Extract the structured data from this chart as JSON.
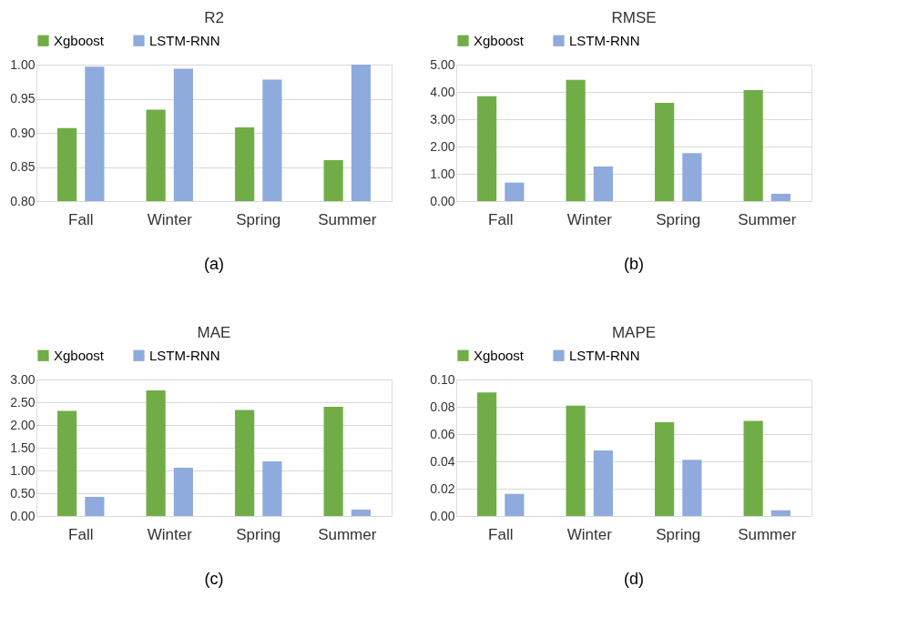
{
  "chart_data": [
    {
      "type": "bar",
      "title": "R2",
      "categories": [
        "Fall",
        "Winter",
        "Spring",
        "Summer"
      ],
      "series": [
        {
          "name": "Xgboost",
          "color": "#70ad47",
          "values": [
            0.907,
            0.934,
            0.908,
            0.86
          ]
        },
        {
          "name": "LSTM-RNN",
          "color": "#8faadc",
          "values": [
            0.997,
            0.994,
            0.978,
            1.0
          ]
        }
      ],
      "ylim": [
        0.8,
        1.0
      ],
      "yticks": [
        {
          "value": 0.8,
          "label": "0.80"
        },
        {
          "value": 0.85,
          "label": "0.85"
        },
        {
          "value": 0.9,
          "label": "0.90"
        },
        {
          "value": 0.95,
          "label": "0.95"
        },
        {
          "value": 1.0,
          "label": "1.00"
        }
      ],
      "grid": "y",
      "legend": "top",
      "annotations": [
        "(a)"
      ]
    },
    {
      "type": "bar",
      "title": "RMSE",
      "categories": [
        "Fall",
        "Winter",
        "Spring",
        "Summer"
      ],
      "series": [
        {
          "name": "Xgboost",
          "color": "#70ad47",
          "values": [
            3.84,
            4.44,
            3.6,
            4.07
          ]
        },
        {
          "name": "LSTM-RNN",
          "color": "#8faadc",
          "values": [
            0.68,
            1.27,
            1.76,
            0.27
          ]
        }
      ],
      "ylim": [
        0,
        5
      ],
      "yticks": [
        {
          "value": 0,
          "label": "0.00"
        },
        {
          "value": 1,
          "label": "1.00"
        },
        {
          "value": 2,
          "label": "2.00"
        },
        {
          "value": 3,
          "label": "3.00"
        },
        {
          "value": 4,
          "label": "4.00"
        },
        {
          "value": 5,
          "label": "5.00"
        }
      ],
      "grid": "y",
      "legend": "top",
      "annotations": [
        "(b)"
      ]
    },
    {
      "type": "bar",
      "title": "MAE",
      "categories": [
        "Fall",
        "Winter",
        "Spring",
        "Summer"
      ],
      "series": [
        {
          "name": "Xgboost",
          "color": "#70ad47",
          "values": [
            2.31,
            2.76,
            2.33,
            2.4
          ]
        },
        {
          "name": "LSTM-RNN",
          "color": "#8faadc",
          "values": [
            0.42,
            1.06,
            1.2,
            0.14
          ]
        }
      ],
      "ylim": [
        0,
        3
      ],
      "yticks": [
        {
          "value": 0,
          "label": "0.00"
        },
        {
          "value": 0.5,
          "label": "0.50"
        },
        {
          "value": 1,
          "label": "1.00"
        },
        {
          "value": 1.5,
          "label": "1.50"
        },
        {
          "value": 2,
          "label": "2.00"
        },
        {
          "value": 2.5,
          "label": "2.50"
        },
        {
          "value": 3,
          "label": "3.00"
        }
      ],
      "grid": "y",
      "legend": "top",
      "annotations": [
        "(c)"
      ]
    },
    {
      "type": "bar",
      "title": "MAPE",
      "categories": [
        "Fall",
        "Winter",
        "Spring",
        "Summer"
      ],
      "series": [
        {
          "name": "Xgboost",
          "color": "#70ad47",
          "values": [
            0.0905,
            0.0809,
            0.0687,
            0.0696
          ]
        },
        {
          "name": "LSTM-RNN",
          "color": "#8faadc",
          "values": [
            0.0162,
            0.048,
            0.0412,
            0.0042
          ]
        }
      ],
      "ylim": [
        0,
        0.1
      ],
      "yticks": [
        {
          "value": 0,
          "label": "0.00"
        },
        {
          "value": 0.02,
          "label": "0.02"
        },
        {
          "value": 0.04,
          "label": "0.04"
        },
        {
          "value": 0.06,
          "label": "0.06"
        },
        {
          "value": 0.08,
          "label": "0.08"
        },
        {
          "value": 0.1,
          "label": "0.10"
        }
      ],
      "grid": "y",
      "legend": "top",
      "annotations": [
        "(d)"
      ]
    }
  ]
}
